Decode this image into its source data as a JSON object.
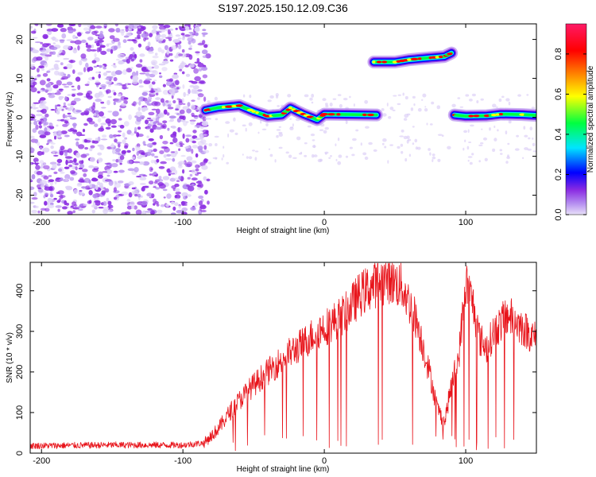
{
  "title": "S197.2025.150.12.09.C36",
  "chart_data": [
    {
      "type": "heatmap",
      "xlabel": "Height of straight line (km)",
      "ylabel": "Frequency (Hz)",
      "xlim": [
        -208,
        150
      ],
      "ylim": [
        -25,
        24
      ],
      "xticks": [
        -200,
        -100,
        0,
        100
      ],
      "yticks": [
        -20,
        -10,
        0,
        10,
        20
      ],
      "colorbar": {
        "label": "Normalized spectral amplitude",
        "range": [
          0,
          0.95
        ],
        "ticks": [
          0.0,
          0.2,
          0.4,
          0.6,
          0.8
        ],
        "colors": [
          "#e8e0f8",
          "#8a2be2",
          "#0000ff",
          "#00e5ff",
          "#00ff40",
          "#ffff00",
          "#ff8000",
          "#ff0000",
          "#ff1a66"
        ]
      },
      "noise_region": {
        "x": [
          -208,
          -82
        ],
        "y": [
          -25,
          24
        ]
      },
      "ridge_segments": [
        {
          "points": [
            [
              -84,
              1.8
            ],
            [
              -75,
              2.5
            ],
            [
              -60,
              3
            ],
            [
              -50,
              1.5
            ],
            [
              -40,
              0.3
            ],
            [
              -30,
              0.6
            ],
            [
              -24,
              2.4
            ],
            [
              -15,
              0.8
            ],
            [
              -5,
              -0.6
            ],
            [
              0,
              0.8
            ],
            [
              20,
              0.7
            ],
            [
              37,
              0.6
            ]
          ]
        },
        {
          "points": [
            [
              35,
              14.2
            ],
            [
              50,
              14.2
            ],
            [
              60,
              14.8
            ],
            [
              75,
              15.3
            ],
            [
              85,
              15.6
            ],
            [
              90,
              16.5
            ]
          ]
        },
        {
          "points": [
            [
              92,
              0.6
            ],
            [
              100,
              0.3
            ],
            [
              115,
              0.4
            ],
            [
              125,
              0.8
            ],
            [
              140,
              0.7
            ],
            [
              150,
              0.5
            ]
          ]
        }
      ]
    },
    {
      "type": "line",
      "xlabel": "Height of straight line (km)",
      "ylabel": "SNR (10 * v/v)",
      "xlim": [
        -208,
        150
      ],
      "ylim": [
        0,
        470
      ],
      "xticks": [
        -200,
        -100,
        0,
        100
      ],
      "yticks": [
        0,
        100,
        200,
        300,
        400
      ],
      "color": "#e8141b",
      "envelope": {
        "x": [
          -208,
          -150,
          -100,
          -85,
          -75,
          -65,
          -55,
          -45,
          -35,
          -25,
          -15,
          -5,
          5,
          15,
          25,
          35,
          45,
          55,
          65,
          75,
          80,
          85,
          90,
          95,
          100,
          105,
          110,
          115,
          120,
          130,
          140,
          150
        ],
        "y": [
          18,
          20,
          20,
          25,
          60,
          110,
          150,
          185,
          215,
          245,
          270,
          300,
          320,
          345,
          390,
          415,
          430,
          410,
          330,
          190,
          110,
          75,
          170,
          235,
          420,
          370,
          280,
          260,
          300,
          340,
          310,
          280
        ]
      }
    }
  ]
}
